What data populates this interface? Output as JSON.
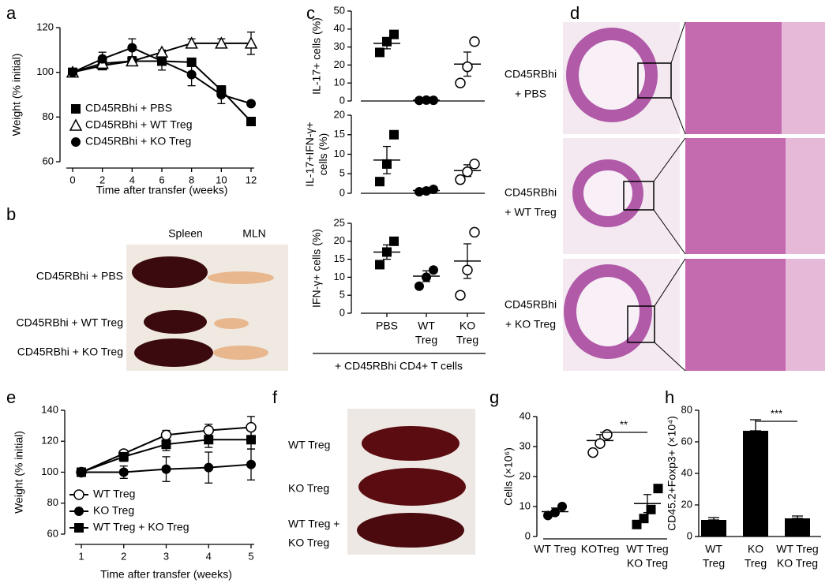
{
  "panel_labels": [
    "a",
    "b",
    "c",
    "d",
    "e",
    "f",
    "g",
    "h"
  ],
  "chart_data": [
    {
      "type": "line",
      "x": [
        0,
        2,
        4,
        6,
        8,
        10,
        12
      ],
      "xlim": [
        0,
        12
      ],
      "xticks": [
        0,
        2,
        4,
        6,
        8,
        10,
        12
      ],
      "ylim": [
        60,
        120
      ],
      "yticks": [
        60,
        80,
        100,
        120
      ],
      "xlabel": "Time after transfer (weeks)",
      "ylabel": "Weight (% initial)",
      "series": [
        {
          "name": "CD45RBhi + PBS",
          "marker": "square",
          "color": "#000000",
          "values": [
            100,
            103,
            105,
            105,
            104.5,
            92,
            78
          ],
          "errors": [
            0,
            1,
            1,
            1,
            1,
            2,
            1
          ]
        },
        {
          "name": "CD45RBhi + WT Treg",
          "marker": "triangle-open",
          "color": "#000000",
          "values": [
            100,
            104,
            105,
            109,
            113,
            113,
            113
          ],
          "errors": [
            0,
            2,
            2,
            1,
            2,
            2,
            5
          ]
        },
        {
          "name": "CD45RBhi + KO Treg",
          "marker": "circle",
          "color": "#000000",
          "values": [
            100,
            106,
            111,
            105,
            99,
            90,
            86
          ],
          "errors": [
            0,
            3,
            4,
            4,
            5,
            4,
            1
          ]
        }
      ]
    },
    {
      "type": "dot-stack",
      "categories": [
        "PBS",
        [
          "WT",
          "Treg"
        ],
        [
          "KO",
          "Treg"
        ]
      ],
      "footer": "+ CD45RBhi CD4+ T cells",
      "subplots": [
        {
          "ylabel": "IL-17+ cells (%)",
          "ylim": [
            0,
            50
          ],
          "yticks": [
            0,
            10,
            20,
            30,
            40,
            50
          ],
          "groups": [
            {
              "marker": "square",
              "color": "#000000",
              "points": [
                27,
                33,
                37
              ],
              "mean": 32,
              "sem": 3
            },
            {
              "marker": "circle",
              "color": "#000000",
              "points": [
                0.3,
                0.5,
                0.4
              ],
              "mean": 0.4,
              "sem": 0.1
            },
            {
              "marker": "circle-open",
              "color": "#000000",
              "points": [
                10,
                19,
                33
              ],
              "mean": 20.5,
              "sem": 6.7
            }
          ]
        },
        {
          "ylabel": [
            "IL-17+IFN-γ+",
            "cells (%)"
          ],
          "ylim": [
            0,
            20
          ],
          "yticks": [
            0,
            5,
            10,
            15,
            20
          ],
          "groups": [
            {
              "marker": "square",
              "color": "#000000",
              "points": [
                3,
                7.5,
                15
              ],
              "mean": 8.5,
              "sem": 3.5
            },
            {
              "marker": "circle",
              "color": "#000000",
              "points": [
                0.4,
                0.6,
                1.0
              ],
              "mean": 0.7,
              "sem": 0.2
            },
            {
              "marker": "circle-open",
              "color": "#000000",
              "points": [
                3.5,
                5.5,
                7.5
              ],
              "mean": 5.8,
              "sem": 1.5
            }
          ]
        },
        {
          "ylabel": "IFN-γ+ cells (%)",
          "ylim": [
            0,
            25
          ],
          "yticks": [
            0,
            5,
            10,
            15,
            20,
            25
          ],
          "groups": [
            {
              "marker": "square",
              "color": "#000000",
              "points": [
                13.5,
                17,
                20
              ],
              "mean": 17,
              "sem": 2
            },
            {
              "marker": "circle",
              "color": "#000000",
              "points": [
                7.5,
                10,
                12
              ],
              "mean": 10.3,
              "sem": 1.5
            },
            {
              "marker": "circle-open",
              "color": "#000000",
              "points": [
                5,
                12,
                22.5
              ],
              "mean": 14.5,
              "sem": 4.8
            }
          ]
        }
      ]
    },
    {
      "type": "line",
      "x": [
        1,
        2,
        3,
        4,
        5
      ],
      "xlim": [
        1,
        5
      ],
      "xticks": [
        1,
        2,
        3,
        4,
        5
      ],
      "ylim": [
        60,
        140
      ],
      "yticks": [
        60,
        80,
        100,
        120,
        140
      ],
      "xlabel": "Time after transfer (weeks)",
      "ylabel": "Weight (% initial)",
      "series": [
        {
          "name": "WT Treg",
          "marker": "circle-open",
          "color": "#000000",
          "values": [
            100,
            112,
            124,
            127,
            129
          ],
          "errors": [
            2,
            2,
            3,
            4,
            7
          ]
        },
        {
          "name": "KO Treg",
          "marker": "circle",
          "color": "#000000",
          "values": [
            100,
            100,
            102,
            103,
            105
          ],
          "errors": [
            2,
            4,
            8,
            10,
            10
          ]
        },
        {
          "name": "WT Treg + KO Treg",
          "marker": "square",
          "color": "#000000",
          "values": [
            100,
            110,
            118,
            121,
            121
          ],
          "errors": [
            2,
            3,
            4,
            5,
            6
          ]
        }
      ]
    },
    {
      "type": "dot",
      "categories": [
        "WT Treg",
        "KOTreg",
        [
          "WT Treg",
          "KO Treg"
        ]
      ],
      "ylabel": "Cells (×10⁶)",
      "ylim": [
        0,
        40
      ],
      "yticks": [
        0,
        10,
        20,
        30,
        40
      ],
      "groups": [
        {
          "marker": "circle",
          "color": "#000000",
          "points": [
            7,
            8,
            10
          ],
          "mean": 8.3,
          "sem": 1.2
        },
        {
          "marker": "circle-open",
          "color": "#000000",
          "points": [
            28,
            31,
            34
          ],
          "mean": 32,
          "sem": 2
        },
        {
          "marker": "square",
          "color": "#000000",
          "points": [
            4,
            6,
            9,
            16
          ],
          "mean": 11,
          "sem": 3
        }
      ],
      "significance": {
        "text": "**",
        "between": [
          1,
          2
        ]
      }
    },
    {
      "type": "bar",
      "categories": [
        [
          "WT",
          "Treg"
        ],
        [
          "KO",
          "Treg"
        ],
        [
          "WT Treg",
          "KO Treg"
        ]
      ],
      "ylabel": "CD45.2+Foxp3+ (×10⁴)",
      "ylim": [
        0,
        80
      ],
      "yticks": [
        0,
        20,
        40,
        60,
        80
      ],
      "values": [
        10.5,
        67,
        11.5
      ],
      "errors": [
        1.5,
        7,
        1.5
      ],
      "color": "#000000",
      "significance": {
        "text": "***",
        "between": [
          1,
          2
        ]
      }
    }
  ],
  "image_panels": {
    "b": {
      "columns": [
        "Spleen",
        "MLN"
      ],
      "rows": [
        "CD45RBhi + PBS",
        "CD45RBhi + WT Treg",
        "CD45RBhi + KO Treg"
      ]
    },
    "d": {
      "rows": [
        [
          "CD45RBhi",
          "+ PBS"
        ],
        [
          "CD45RBhi",
          "+ WT Treg"
        ],
        [
          "CD45RBhi",
          "+ KO Treg"
        ]
      ]
    },
    "f": {
      "rows": [
        [
          "WT Treg"
        ],
        [
          "KO Treg"
        ],
        [
          "WT Treg +",
          "KO Treg"
        ]
      ]
    }
  }
}
